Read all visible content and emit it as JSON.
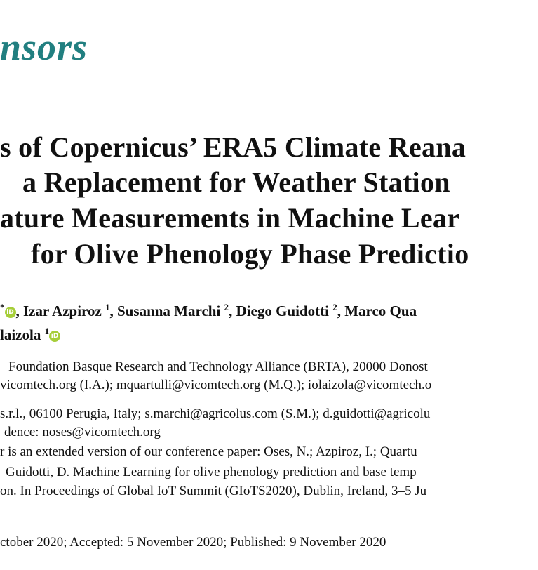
{
  "journal": {
    "logo_text": "nsors",
    "color": "#217f80"
  },
  "title_lines": [
    "s of Copernicus’ ERA5 Climate Reana",
    "a Replacement for Weather Station",
    "ature Measurements in Machine Lear",
    "for Olive Phenology Phase Predictio"
  ],
  "authors": {
    "line1": [
      {
        "prefix": "",
        "name": "",
        "sup": "*",
        "orcid": true
      },
      {
        "prefix": ", ",
        "name": "Izar Azpiroz",
        "sup": "1",
        "orcid": false
      },
      {
        "prefix": ", ",
        "name": "Susanna Marchi",
        "sup": "2",
        "orcid": false
      },
      {
        "prefix": ", ",
        "name": "Diego Guidotti",
        "sup": "2",
        "orcid": false
      },
      {
        "prefix": ", ",
        "name": "Marco Qua",
        "sup": "",
        "orcid": false
      }
    ],
    "line2": {
      "name": "laizola",
      "sup": "1",
      "orcid": true
    },
    "orcid_label": "iD"
  },
  "affiliations": [
    "Foundation Basque Research and Technology Alliance (BRTA), 20000 Donost",
    "vicomtech.org (I.A.); mquartulli@vicomtech.org (M.Q.); iolaizola@vicomtech.o",
    "s.r.l., 06100 Perugia, Italy; s.marchi@agricolus.com (S.M.); d.guidotti@agricolu",
    "dence: noses@vicomtech.org"
  ],
  "note": [
    "r is an extended version of our conference paper: Oses, N.; Azpiroz, I.; Quartu",
    "Guidotti, D. Machine Learning for olive phenology prediction and base temp",
    "on. In Proceedings of Global IoT Summit (GIoTS2020), Dublin, Ireland, 3–5 Ju"
  ],
  "dates": "ctober 2020; Accepted: 5 November 2020; Published: 9 November 2020"
}
